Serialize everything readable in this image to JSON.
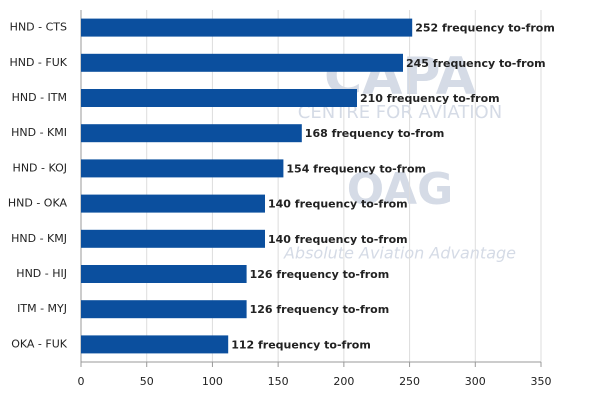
{
  "chart_data": {
    "type": "bar",
    "orientation": "horizontal",
    "categories": [
      "HND - CTS",
      "HND - FUK",
      "HND - ITM",
      "HND - KMI",
      "HND - KOJ",
      "HND - OKA",
      "HND - KMJ",
      "HND - HIJ",
      "ITM - MYJ",
      "OKA - FUK"
    ],
    "values": [
      252,
      245,
      210,
      168,
      154,
      140,
      140,
      126,
      126,
      112
    ],
    "value_labels": [
      "252 frequency to-from",
      "245 frequency to-from",
      "210 frequency to-from",
      "168 frequency to-from",
      "154 frequency to-from",
      "140 frequency to-from",
      "140 frequency to-from",
      "126 frequency to-from",
      "126 frequency to-from",
      "112 frequency to-from"
    ],
    "color": "#0b4f9e",
    "xlim": [
      0,
      350
    ],
    "xticks": [
      0,
      50,
      100,
      150,
      200,
      250,
      300,
      350
    ],
    "grid": true,
    "watermarks": [
      "CAPA",
      "CENTRE FOR AVIATION",
      "OAG",
      "Absolute Aviation Advantage"
    ]
  }
}
